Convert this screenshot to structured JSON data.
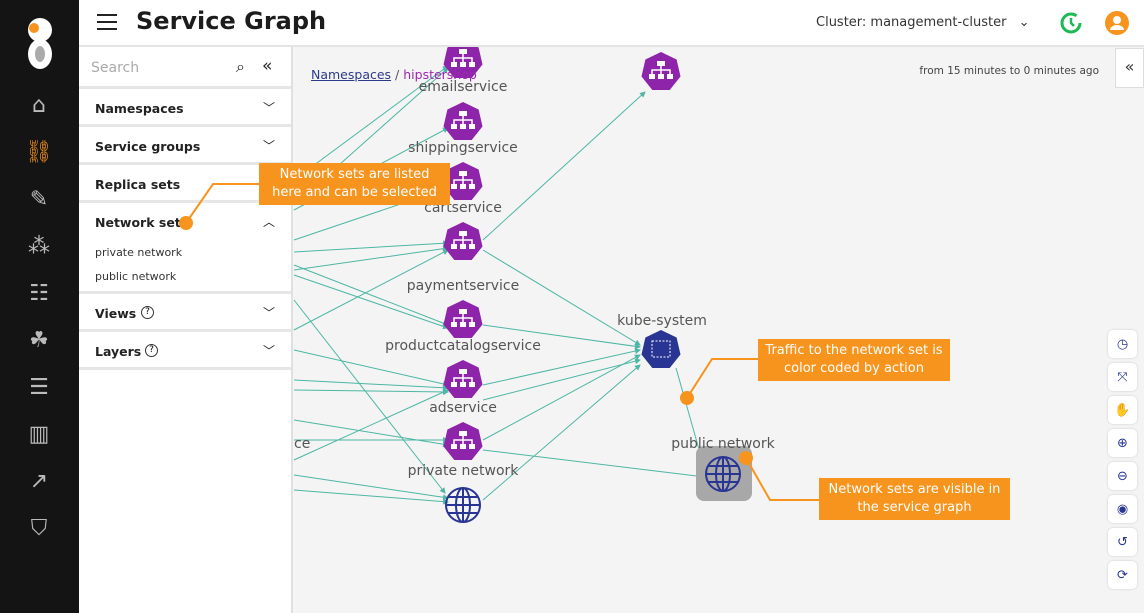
{
  "header": {
    "title": "Service Graph",
    "cluster": "Cluster: management-cluster"
  },
  "nav": [
    "home-icon",
    "service-graph-icon",
    "policies-icon",
    "endpoints-icon",
    "network-icon",
    "nodes-icon",
    "compliance-icon",
    "dashboard-icon",
    "metrics-icon",
    "security-icon"
  ],
  "panel": {
    "search_placeholder": "Search",
    "sections": [
      {
        "label": "Namespaces"
      },
      {
        "label": "Service groups"
      },
      {
        "label": "Replica sets"
      },
      {
        "label": "Network sets",
        "items": [
          "private network",
          "public network"
        ]
      },
      {
        "label": "Views"
      },
      {
        "label": "Layers"
      }
    ]
  },
  "breadcrumb": {
    "root": "Namespaces",
    "current": "hipstershop"
  },
  "time_range": "from 15 minutes to 0 minutes ago",
  "graph": {
    "nodes": [
      "emailservice",
      "shippingservice",
      "cartservice",
      "paymentservice",
      "productcatalogservice",
      "adservice",
      "private network",
      "kube-system",
      "public network"
    ],
    "partial_label": "ce",
    "edge_color": "#4db6a4",
    "service_color": "#8e24aa",
    "namespace_color": "#283593"
  },
  "tools": [
    "clock-icon",
    "fit-icon",
    "pan-icon",
    "zoom-in-icon",
    "zoom-out-icon",
    "eye-icon",
    "undo-icon",
    "refresh-icon"
  ],
  "callouts": [
    "Network sets are listed here and can be selected",
    "Traffic to the network set is color coded by action",
    "Network sets are visible in the service graph"
  ],
  "colors": {
    "accent": "#f7941d",
    "history": "#1db954"
  }
}
